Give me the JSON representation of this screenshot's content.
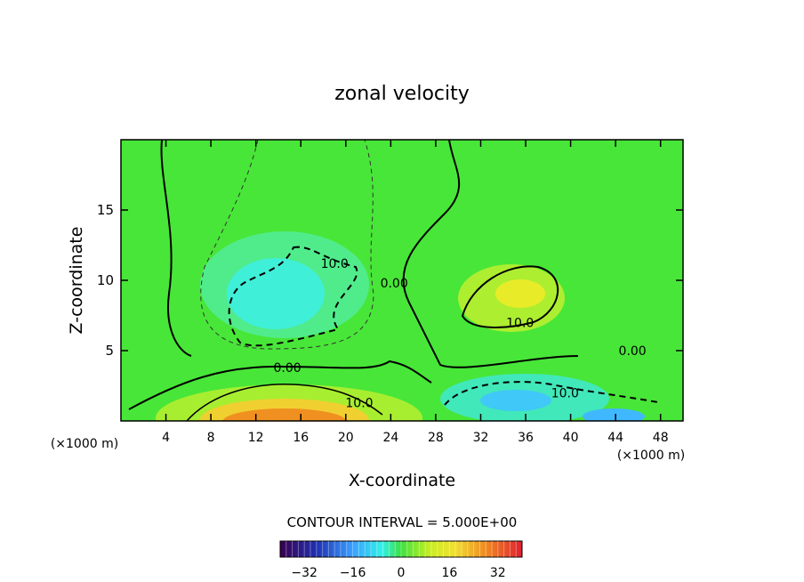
{
  "chart_data": {
    "type": "heatmap",
    "title": "zonal velocity",
    "xlabel": "X-coordinate",
    "ylabel": "Z-coordinate",
    "x_unit_left": "(×1000 m)",
    "x_unit_right": "(×1000 m)",
    "xlim": [
      0,
      50
    ],
    "ylim": [
      0,
      20
    ],
    "xticks": [
      4,
      8,
      12,
      16,
      20,
      24,
      28,
      32,
      36,
      40,
      44,
      48
    ],
    "yticks": [
      5,
      10,
      15
    ],
    "contour_interval_text": "CONTOUR INTERVAL = 5.000E+00",
    "colorbar": {
      "range": [
        -40,
        40
      ],
      "ticks": [
        -32,
        -16,
        0,
        16,
        32
      ]
    },
    "contour_labels": [
      {
        "text": "10.0",
        "x": 19.0,
        "y": 11.2
      },
      {
        "text": "0.00",
        "x": 24.3,
        "y": 9.8
      },
      {
        "text": "0.00",
        "x": 14.8,
        "y": 3.8
      },
      {
        "text": "10.0",
        "x": 21.2,
        "y": 1.3
      },
      {
        "text": "10.0",
        "x": 35.5,
        "y": 7.0
      },
      {
        "text": "0.00",
        "x": 45.5,
        "y": 5.0
      },
      {
        "text": "10.0",
        "x": 39.5,
        "y": 2.0
      }
    ],
    "features": [
      {
        "kind": "jet",
        "x": 14.5,
        "z": 0.8,
        "value": 30
      },
      {
        "kind": "negative-core",
        "x": 14.0,
        "z": 8.5,
        "value": -14
      },
      {
        "kind": "positive-core",
        "x": 35.5,
        "z": 9.0,
        "value": 17
      },
      {
        "kind": "negative-core",
        "x": 36.0,
        "z": 1.8,
        "value": -12
      },
      {
        "kind": "negative-core",
        "x": 43.5,
        "z": 0.5,
        "value": -9
      }
    ]
  }
}
